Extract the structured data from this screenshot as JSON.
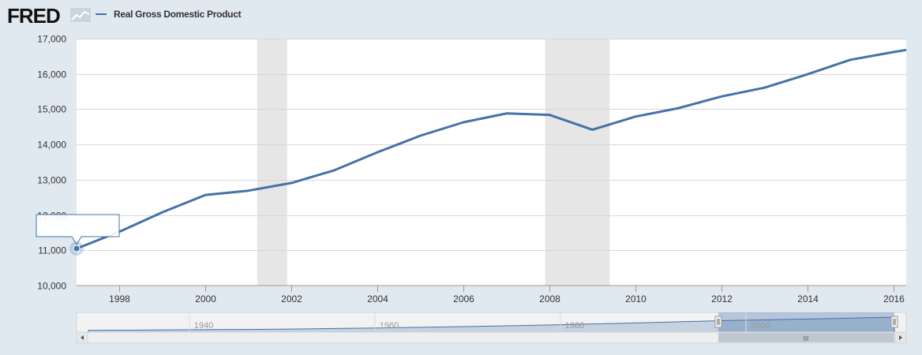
{
  "brand": {
    "logo_text": "FRED",
    "logo_icon": "chart-line-icon"
  },
  "legend": {
    "label": "Real Gross Domestic Product",
    "color": "#4572a7"
  },
  "tooltip": {
    "text": ""
  },
  "chart_data": {
    "type": "line",
    "title": "",
    "xlabel": "",
    "ylabel": "",
    "xlim": [
      1997,
      2016.3
    ],
    "ylim": [
      10000,
      17000
    ],
    "x_ticks": [
      1998,
      2000,
      2002,
      2004,
      2006,
      2008,
      2010,
      2012,
      2014,
      2016
    ],
    "y_ticks": [
      10000,
      11000,
      12000,
      13000,
      14000,
      15000,
      16000,
      17000
    ],
    "y_tick_labels": [
      "10,000",
      "11,000",
      "12,000",
      "13,000",
      "14,000",
      "15,000",
      "16,000",
      "17,000"
    ],
    "grid": true,
    "legend_position": "top-left",
    "recessions": [
      [
        2001.2,
        2001.9
      ],
      [
        2007.9,
        2009.4
      ]
    ],
    "series": [
      {
        "name": "Real Gross Domestic Product",
        "color": "#4572a7",
        "x": [
          1997,
          1998,
          1999,
          2000,
          2001,
          2002,
          2003,
          2004,
          2005,
          2006,
          2007,
          2008,
          2009,
          2010,
          2011,
          2012,
          2013,
          2014,
          2015,
          2016,
          2016.3
        ],
        "y": [
          11050,
          11530,
          12080,
          12570,
          12690,
          12910,
          13270,
          13780,
          14250,
          14630,
          14880,
          14840,
          14420,
          14790,
          15030,
          15360,
          15610,
          15990,
          16400,
          16620,
          16680
        ]
      }
    ]
  },
  "navigator": {
    "labels": [
      "1940",
      "1960",
      "1980",
      "2000"
    ],
    "scroll_left_icon": "chevron-left-icon",
    "scroll_right_icon": "chevron-right-icon",
    "scrollbar_grip": "III"
  }
}
